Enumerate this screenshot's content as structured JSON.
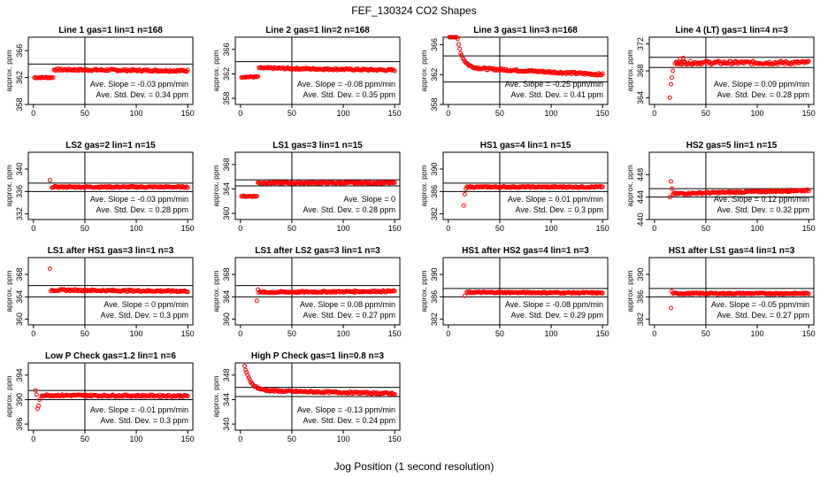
{
  "figure": {
    "title": "FEF_130324  CO2 Shapes",
    "xlabel": "Jog Position (1 second resolution)",
    "ylabel": "approx. ppm",
    "point_color": "#ff0000",
    "ref_line_color": "#000000"
  },
  "chart_data": [
    {
      "type": "scatter",
      "title": "Line 1 gas=1 lin=1 n=168",
      "ylim": [
        358,
        368
      ],
      "yticks": [
        358,
        362,
        366
      ],
      "xticks": [
        0,
        50,
        100,
        150
      ],
      "hlines": [
        364
      ],
      "vline": 50,
      "slope": "Ave. Slope =  -0.03  ppm/min",
      "sd": "Ave. Std. Dev. =  0.34  ppm",
      "shape": {
        "start": 1,
        "pre": 362,
        "step_at": 20,
        "level": 363.2,
        "end": 363,
        "noise": 0.15
      }
    },
    {
      "type": "scatter",
      "title": "Line 2 gas=1 lin=2 n=168",
      "ylim": [
        357,
        368
      ],
      "yticks": [
        358,
        362,
        366
      ],
      "xticks": [
        0,
        50,
        100,
        150
      ],
      "hlines": [
        364
      ],
      "vline": 50,
      "slope": "Ave. Slope =  -0.08  ppm/min",
      "sd": "Ave. Std. Dev. =  0.35  ppm",
      "shape": {
        "start": 1,
        "pre": 361.5,
        "step_at": 18,
        "level": 363.0,
        "end": 362.6,
        "noise": 0.15
      }
    },
    {
      "type": "scatter",
      "title": "Line 3 gas=1 lin=3 n=168",
      "ylim": [
        358,
        367
      ],
      "yticks": [
        358,
        362,
        366
      ],
      "xticks": [
        0,
        50,
        100,
        150
      ],
      "hlines": [
        364.5,
        361
      ],
      "vline": 50,
      "slope": "Ave. Slope =  -0.25  ppm/min",
      "sd": "Ave. Std. Dev. =  0.41  ppm",
      "shape": {
        "start": 1,
        "pre": 366.8,
        "decay_from": 367.5,
        "decay_at": 8,
        "decay_tau": 5,
        "level": 363,
        "end": 362,
        "noise": 0.15
      }
    },
    {
      "type": "scatter",
      "title": "Line 4 (LT) gas=1 lin=4 n=3",
      "ylim": [
        363,
        373
      ],
      "yticks": [
        364,
        368,
        372
      ],
      "xticks": [
        0,
        50,
        100,
        150
      ],
      "hlines": [
        370,
        368.5
      ],
      "vline": 50,
      "slope": "Ave. Slope =  0.09  ppm/min",
      "sd": "Ave. Std. Dev. =  0.28  ppm",
      "shape": {
        "start": 20,
        "level": 369.2,
        "end": 369.2,
        "noise": 0.25
      },
      "outliers": [
        [
          15,
          364
        ],
        [
          16,
          366
        ],
        [
          17,
          367
        ],
        [
          18,
          368
        ],
        [
          22,
          369
        ],
        [
          25,
          369.8
        ],
        [
          28,
          369.9
        ]
      ]
    },
    {
      "type": "scatter",
      "title": "LS2 gas=2 lin=1 n=15",
      "ylim": [
        331,
        343
      ],
      "yticks": [
        332,
        336,
        340
      ],
      "xticks": [
        0,
        50,
        100,
        150
      ],
      "hlines": [
        337.5,
        336
      ],
      "vline": 50,
      "slope": "Ave. Slope =  -0.03  ppm/min",
      "sd": "Ave. Std. Dev. =  0.28  ppm",
      "shape": {
        "start": 18,
        "level": 336.8,
        "end": 336.8,
        "noise": 0.12
      },
      "outliers": [
        [
          16,
          338
        ]
      ]
    },
    {
      "type": "scatter",
      "title": "LS1 gas=3 lin=1 n=15",
      "ylim": [
        359,
        370
      ],
      "yticks": [
        360,
        364,
        368
      ],
      "xticks": [
        0,
        50,
        100,
        150
      ],
      "hlines": [
        365.5,
        364.5
      ],
      "vline": 50,
      "slope": "Ave. Slope =  0",
      "sd": "Ave. Std. Dev. =  0.28  ppm",
      "shape": {
        "start": 1,
        "pre": 362.8,
        "step_at": 17,
        "level": 365,
        "end": 365,
        "noise": 0.12
      }
    },
    {
      "type": "scatter",
      "title": "HS1 gas=4 lin=1 n=15",
      "ylim": [
        381,
        393
      ],
      "yticks": [
        382,
        386,
        390
      ],
      "xticks": [
        0,
        50,
        100,
        150
      ],
      "hlines": [
        387.5,
        386
      ],
      "vline": 50,
      "slope": "Ave. Slope =  0.01  ppm/min",
      "sd": "Ave. Std. Dev. =  0.3  ppm",
      "shape": {
        "start": 18,
        "level": 386.8,
        "end": 386.8,
        "noise": 0.12
      },
      "outliers": [
        [
          15,
          383.5
        ],
        [
          16,
          385.5
        ],
        [
          17,
          386.5
        ]
      ]
    },
    {
      "type": "scatter",
      "title": "HS2 gas=5 lin=1 n=15",
      "ylim": [
        440,
        452
      ],
      "yticks": [
        440,
        444,
        448
      ],
      "xticks": [
        0,
        50,
        100,
        150
      ],
      "hlines": [
        445.5,
        444
      ],
      "vline": 50,
      "slope": "Ave. Slope =  0.12  ppm/min",
      "sd": "Ave. Std. Dev. =  0.32  ppm",
      "shape": {
        "start": 18,
        "level": 444.6,
        "end": 445.2,
        "noise": 0.15
      },
      "outliers": [
        [
          16,
          446.8
        ],
        [
          17,
          445.5
        ],
        [
          15,
          444
        ]
      ]
    },
    {
      "type": "scatter",
      "title": "LS1 after HS1 gas=3 lin=1 n=3",
      "ylim": [
        359,
        371
      ],
      "yticks": [
        360,
        364,
        368
      ],
      "xticks": [
        0,
        50,
        100,
        150
      ],
      "hlines": [
        366,
        364
      ],
      "vline": 50,
      "slope": "Ave. Slope =  0  ppm/min",
      "sd": "Ave. Std. Dev. =  0.3  ppm",
      "shape": {
        "start": 18,
        "level": 365.2,
        "end": 365,
        "noise": 0.15
      },
      "outliers": [
        [
          16,
          369
        ],
        [
          17,
          365
        ]
      ]
    },
    {
      "type": "scatter",
      "title": "LS1 after LS2 gas=3 lin=1 n=3",
      "ylim": [
        359,
        371
      ],
      "yticks": [
        360,
        364,
        368
      ],
      "xticks": [
        0,
        50,
        100,
        150
      ],
      "hlines": [
        366,
        364
      ],
      "vline": 50,
      "slope": "Ave. Slope =  0.08  ppm/min",
      "sd": "Ave. Std. Dev. =  0.27  ppm",
      "shape": {
        "start": 18,
        "level": 364.8,
        "end": 365,
        "noise": 0.15
      },
      "outliers": [
        [
          16,
          363.3
        ],
        [
          17,
          365.3
        ]
      ]
    },
    {
      "type": "scatter",
      "title": "HS1 after HS2 gas=4 lin=1 n=3",
      "ylim": [
        381,
        393
      ],
      "yticks": [
        382,
        386,
        390
      ],
      "xticks": [
        0,
        50,
        100,
        150
      ],
      "hlines": [
        387.5,
        386
      ],
      "vline": 50,
      "slope": "Ave. Slope =  -0.08  ppm/min",
      "sd": "Ave. Std. Dev. =  0.29  ppm",
      "shape": {
        "start": 18,
        "level": 386.8,
        "end": 386.7,
        "noise": 0.12
      },
      "outliers": [
        [
          16,
          386.2
        ]
      ]
    },
    {
      "type": "scatter",
      "title": "HS1 after LS1 gas=4 lin=1 n=3",
      "ylim": [
        381,
        393
      ],
      "yticks": [
        382,
        386,
        390
      ],
      "xticks": [
        0,
        50,
        100,
        150
      ],
      "hlines": [
        387.5,
        386
      ],
      "vline": 50,
      "slope": "Ave. Slope =  -0.05  ppm/min",
      "sd": "Ave. Std. Dev. =  0.27  ppm",
      "shape": {
        "start": 19,
        "level": 386.6,
        "end": 386.6,
        "noise": 0.12
      },
      "outliers": [
        [
          16,
          384
        ],
        [
          17,
          387
        ],
        [
          18,
          386.6
        ]
      ]
    },
    {
      "type": "scatter",
      "title": "Low P Check gas=1.2 lin=1 n=6",
      "ylim": [
        385,
        396
      ],
      "yticks": [
        386,
        390,
        394
      ],
      "xticks": [
        0,
        50,
        100,
        150
      ],
      "hlines": [
        391.5,
        390
      ],
      "vline": 50,
      "slope": "Ave. Slope =  -0.01  ppm/min",
      "sd": "Ave. Std. Dev. =  0.3  ppm",
      "shape": {
        "start": 8,
        "level": 390.7,
        "end": 390.6,
        "noise": 0.15
      },
      "outliers": [
        [
          2,
          391.5
        ],
        [
          3,
          390.8
        ],
        [
          4,
          388.5
        ],
        [
          5,
          389
        ],
        [
          6,
          390
        ]
      ]
    },
    {
      "type": "scatter",
      "title": "High P Check gas=1 lin=0.8 n=3",
      "ylim": [
        339,
        350
      ],
      "yticks": [
        340,
        344,
        348
      ],
      "xticks": [
        0,
        50,
        100,
        150
      ],
      "hlines": [
        346,
        344.5
      ],
      "vline": 50,
      "slope": "Ave. Slope =  -0.13  ppm/min",
      "sd": "Ave. Std. Dev. =  0.24  ppm",
      "shape": {
        "start": 4,
        "decay_from": 349.5,
        "decay_at": 4,
        "decay_tau": 6,
        "level": 345.5,
        "end": 345,
        "noise": 0.15
      }
    }
  ]
}
